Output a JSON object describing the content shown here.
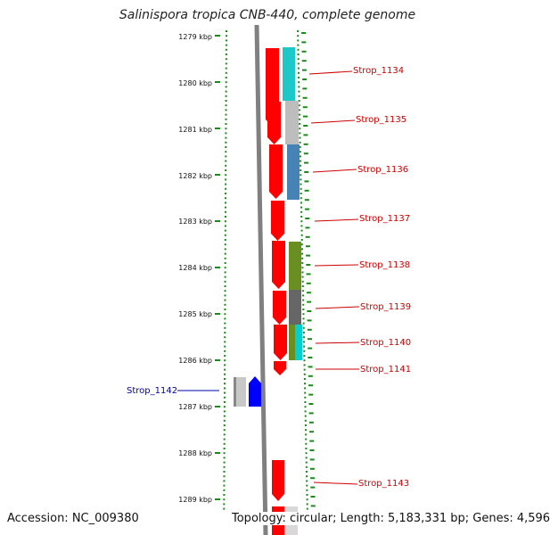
{
  "title": "Salinispora tropica CNB-440, complete genome",
  "accession": "Accession: NC_009380",
  "topology": "Topology: circular; Length: 5,183,331 bp; Genes: 4,596",
  "colors": {
    "ruler_tick": "#1a8a1a",
    "backbone": "#7a7a7a",
    "forward_label": "#cc0000",
    "reverse_label": "#0000aa",
    "gene_red": "#ff0000",
    "gene_blue": "#0000ff"
  },
  "kbp_labels": [
    "1279 kbp",
    "1280 kbp",
    "1281 kbp",
    "1282 kbp",
    "1283 kbp",
    "1284 kbp",
    "1285 kbp",
    "1286 kbp",
    "1287 kbp",
    "1288 kbp",
    "1289 kbp"
  ],
  "forward_genes": [
    {
      "label": "Strop_1134"
    },
    {
      "label": "Strop_1135"
    },
    {
      "label": "Strop_1136"
    },
    {
      "label": "Strop_1137"
    },
    {
      "label": "Strop_1138"
    },
    {
      "label": "Strop_1139"
    },
    {
      "label": "Strop_1140"
    },
    {
      "label": "Strop_1141"
    },
    {
      "label": "Strop_1143"
    }
  ],
  "reverse_genes": [
    {
      "label": "Strop_1142"
    }
  ]
}
